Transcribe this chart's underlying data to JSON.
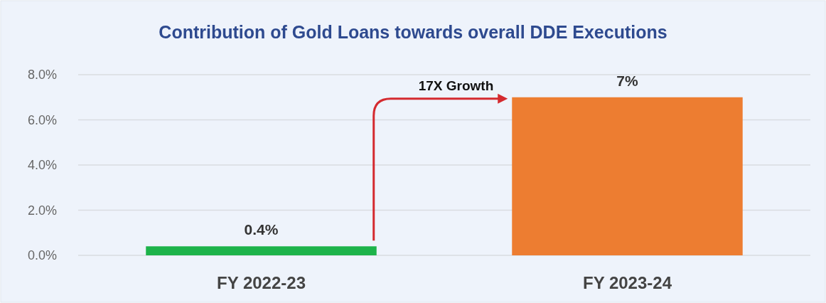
{
  "chart_data": {
    "type": "bar",
    "title": "Contribution of Gold Loans towards overall DDE Executions",
    "categories": [
      "FY 2022-23",
      "FY 2023-24"
    ],
    "values": [
      0.4,
      7
    ],
    "colors": [
      "#1db34a",
      "#ed7d31"
    ],
    "value_labels": [
      "0.4%",
      "7%"
    ],
    "ylim": [
      0,
      8
    ],
    "yticks": [
      {
        "value": 0,
        "label": "0.0%"
      },
      {
        "value": 2,
        "label": "2.0%"
      },
      {
        "value": 4,
        "label": "4.0%"
      },
      {
        "value": 6,
        "label": "6.0%"
      },
      {
        "value": 8,
        "label": "8.0%"
      }
    ],
    "grid": "y",
    "annotations": [
      "17X Growth"
    ]
  }
}
